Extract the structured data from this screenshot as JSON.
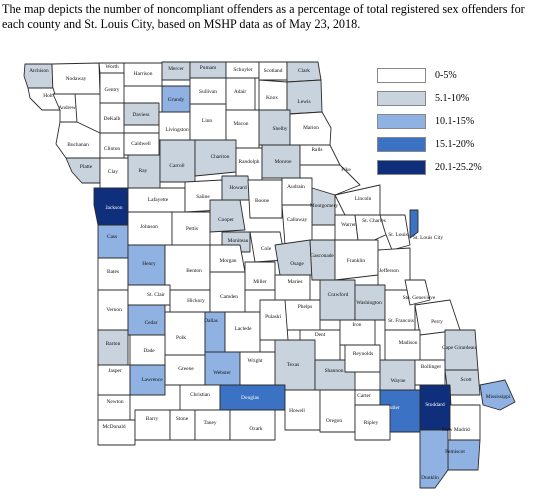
{
  "caption": "The map depicts the number of noncompliant offenders as a percentage of total registered sex offenders for each county and St. Louis City, based on MSHP data as of May 23, 2018.",
  "legend": [
    {
      "label": "0-5%",
      "color": "#ffffff"
    },
    {
      "label": "5.1-10%",
      "color": "#c9d3de"
    },
    {
      "label": "10.1-15%",
      "color": "#8fb2e3"
    },
    {
      "label": "15.1-20%",
      "color": "#3b72c4"
    },
    {
      "label": "20.1-25.2%",
      "color": "#0f2e7c"
    }
  ],
  "counties": [
    {
      "name": "Atchison",
      "cls": 1
    },
    {
      "name": "Nodaway",
      "cls": 0
    },
    {
      "name": "Worth",
      "cls": 0
    },
    {
      "name": "Harrison",
      "cls": 0
    },
    {
      "name": "Mercer",
      "cls": 1
    },
    {
      "name": "Putnam",
      "cls": 1
    },
    {
      "name": "Schuyler",
      "cls": 0
    },
    {
      "name": "Scotland",
      "cls": 0
    },
    {
      "name": "Clark",
      "cls": 1
    },
    {
      "name": "Holt",
      "cls": 0
    },
    {
      "name": "Andrew",
      "cls": 0
    },
    {
      "name": "Gentry",
      "cls": 0
    },
    {
      "name": "DeKalb",
      "cls": 0
    },
    {
      "name": "Daviess",
      "cls": 1
    },
    {
      "name": "Grundy",
      "cls": 2
    },
    {
      "name": "Sullivan",
      "cls": 0
    },
    {
      "name": "Adair",
      "cls": 0
    },
    {
      "name": "Knox",
      "cls": 0
    },
    {
      "name": "Lewis",
      "cls": 1
    },
    {
      "name": "Buchanan",
      "cls": 0
    },
    {
      "name": "Clinton",
      "cls": 0
    },
    {
      "name": "Caldwell",
      "cls": 0
    },
    {
      "name": "Livingston",
      "cls": 0
    },
    {
      "name": "Linn",
      "cls": 0
    },
    {
      "name": "Macon",
      "cls": 0
    },
    {
      "name": "Shelby",
      "cls": 1
    },
    {
      "name": "Marion",
      "cls": 0
    },
    {
      "name": "Platte",
      "cls": 1
    },
    {
      "name": "Clay",
      "cls": 0
    },
    {
      "name": "Ray",
      "cls": 1
    },
    {
      "name": "Carroll",
      "cls": 1
    },
    {
      "name": "Chariton",
      "cls": 1
    },
    {
      "name": "Randolph",
      "cls": 0
    },
    {
      "name": "Monroe",
      "cls": 1
    },
    {
      "name": "Ralls",
      "cls": 0
    },
    {
      "name": "Pike",
      "cls": 0
    },
    {
      "name": "Jackson",
      "cls": 4
    },
    {
      "name": "Lafayette",
      "cls": 0
    },
    {
      "name": "Saline",
      "cls": 0
    },
    {
      "name": "Howard",
      "cls": 1
    },
    {
      "name": "Boone",
      "cls": 0
    },
    {
      "name": "Audrain",
      "cls": 0
    },
    {
      "name": "Montgomery",
      "cls": 1
    },
    {
      "name": "Lincoln",
      "cls": 0
    },
    {
      "name": "Cass",
      "cls": 2
    },
    {
      "name": "Johnson",
      "cls": 0
    },
    {
      "name": "Pettis",
      "cls": 0
    },
    {
      "name": "Cooper",
      "cls": 1
    },
    {
      "name": "Moniteau",
      "cls": 1
    },
    {
      "name": "Cole",
      "cls": 0
    },
    {
      "name": "Callaway",
      "cls": 0
    },
    {
      "name": "Warren",
      "cls": 0
    },
    {
      "name": "St. Charles",
      "cls": 0
    },
    {
      "name": "St. Louis",
      "cls": 0
    },
    {
      "name": "St. Louis City",
      "cls": 3
    },
    {
      "name": "Bates",
      "cls": 0
    },
    {
      "name": "Henry",
      "cls": 2
    },
    {
      "name": "Benton",
      "cls": 0
    },
    {
      "name": "Morgan",
      "cls": 0
    },
    {
      "name": "Miller",
      "cls": 0
    },
    {
      "name": "Osage",
      "cls": 1
    },
    {
      "name": "Gasconade",
      "cls": 1
    },
    {
      "name": "Franklin",
      "cls": 0
    },
    {
      "name": "Jefferson",
      "cls": 0
    },
    {
      "name": "Vernon",
      "cls": 0
    },
    {
      "name": "St. Clair",
      "cls": 0
    },
    {
      "name": "Hickory",
      "cls": 0
    },
    {
      "name": "Camden",
      "cls": 0
    },
    {
      "name": "Maries",
      "cls": 0
    },
    {
      "name": "Phelps",
      "cls": 0
    },
    {
      "name": "Crawford",
      "cls": 1
    },
    {
      "name": "Washington",
      "cls": 1
    },
    {
      "name": "St. Francois",
      "cls": 0
    },
    {
      "name": "Ste. Genevieve",
      "cls": 0
    },
    {
      "name": "Perry",
      "cls": 0
    },
    {
      "name": "Barton",
      "cls": 1
    },
    {
      "name": "Cedar",
      "cls": 2
    },
    {
      "name": "Polk",
      "cls": 0
    },
    {
      "name": "Dallas",
      "cls": 2
    },
    {
      "name": "Laclede",
      "cls": 0
    },
    {
      "name": "Pulaski",
      "cls": 0
    },
    {
      "name": "Dent",
      "cls": 0
    },
    {
      "name": "Iron",
      "cls": 0
    },
    {
      "name": "Madison",
      "cls": 0
    },
    {
      "name": "Cape Girardeau",
      "cls": 1
    },
    {
      "name": "Jasper",
      "cls": 0
    },
    {
      "name": "Dade",
      "cls": 0
    },
    {
      "name": "Greene",
      "cls": 0
    },
    {
      "name": "Webster",
      "cls": 2
    },
    {
      "name": "Wright",
      "cls": 0
    },
    {
      "name": "Texas",
      "cls": 1
    },
    {
      "name": "Shannon",
      "cls": 1
    },
    {
      "name": "Reynolds",
      "cls": 0
    },
    {
      "name": "Wayne",
      "cls": 1
    },
    {
      "name": "Bollinger",
      "cls": 0
    },
    {
      "name": "Scott",
      "cls": 1
    },
    {
      "name": "Mississippi",
      "cls": 2
    },
    {
      "name": "Newton",
      "cls": 0
    },
    {
      "name": "Lawrence",
      "cls": 2
    },
    {
      "name": "Christian",
      "cls": 0
    },
    {
      "name": "Douglas",
      "cls": 3
    },
    {
      "name": "Howell",
      "cls": 0
    },
    {
      "name": "Oregon",
      "cls": 0
    },
    {
      "name": "Carter",
      "cls": 0
    },
    {
      "name": "Butler",
      "cls": 3
    },
    {
      "name": "Stoddard",
      "cls": 4
    },
    {
      "name": "New Madrid",
      "cls": 0
    },
    {
      "name": "McDonald",
      "cls": 0
    },
    {
      "name": "Barry",
      "cls": 0
    },
    {
      "name": "Stone",
      "cls": 0
    },
    {
      "name": "Taney",
      "cls": 0
    },
    {
      "name": "Ozark",
      "cls": 0
    },
    {
      "name": "Ripley",
      "cls": 0
    },
    {
      "name": "Pemiscot",
      "cls": 2
    },
    {
      "name": "Dunklin",
      "cls": 2
    }
  ]
}
